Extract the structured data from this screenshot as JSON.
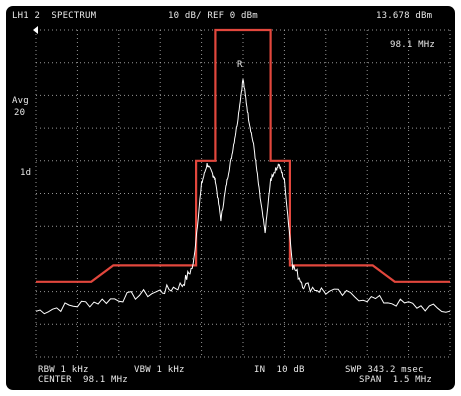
{
  "header": {
    "mode": "LH1 2  SPECTRUM",
    "scale": "10 dB/ REF 0 dBm",
    "ref_readout": "13.678 dBm",
    "freq_readout": "98.1 MHz"
  },
  "left_labels": {
    "avg": "Avg",
    "avg_count": "20",
    "trace_id": "1d"
  },
  "marker": {
    "label": "R"
  },
  "footer": {
    "rbw": "RBW 1 kHz",
    "vbw": "VBW 1 kHz",
    "atten": "IN  10 dB",
    "sweep": "SWP 343.2 msec",
    "center": "CENTER  98.1 MHz",
    "span": "SPAN  1.5 MHz"
  },
  "colors": {
    "background": "#000000",
    "trace": "#ffffff",
    "mask": "#e2473d",
    "grid": "#bdbdbd",
    "text": "#e9e9e9"
  },
  "chart_data": {
    "type": "line",
    "x_center_mhz": 98.1,
    "span_mhz": 1.5,
    "x_range_mhz": [
      97.35,
      98.85
    ],
    "y_ref_dbm": 0,
    "y_scale_db_per_div": 10,
    "y_range_dbm": [
      -100,
      0
    ],
    "grid": true,
    "series": [
      {
        "role": "mask",
        "x": [
          97.35,
          97.55,
          97.63,
          97.93,
          97.93,
          98.0,
          98.0,
          98.2,
          98.2,
          98.27,
          98.27,
          98.57,
          98.65,
          98.85
        ],
        "y": [
          -77,
          -77,
          -72,
          -72,
          -40,
          -40,
          0,
          0,
          -40,
          -40,
          -72,
          -72,
          -77,
          -77
        ]
      },
      {
        "role": "spectrum",
        "x": [
          97.35,
          97.5,
          97.65,
          97.8,
          97.88,
          97.92,
          97.95,
          97.97,
          97.99,
          98.0,
          98.02,
          98.04,
          98.06,
          98.08,
          98.1,
          98.12,
          98.14,
          98.16,
          98.18,
          98.2,
          98.21,
          98.23,
          98.25,
          98.28,
          98.32,
          98.4,
          98.55,
          98.7,
          98.85
        ],
        "y": [
          -86,
          -84,
          -82,
          -80,
          -78,
          -72,
          -47,
          -41,
          -44,
          -46,
          -58,
          -47,
          -38,
          -28,
          -15,
          -27,
          -36,
          -50,
          -62,
          -46,
          -44,
          -41,
          -46,
          -72,
          -78,
          -80,
          -82,
          -84,
          -86
        ]
      }
    ]
  }
}
